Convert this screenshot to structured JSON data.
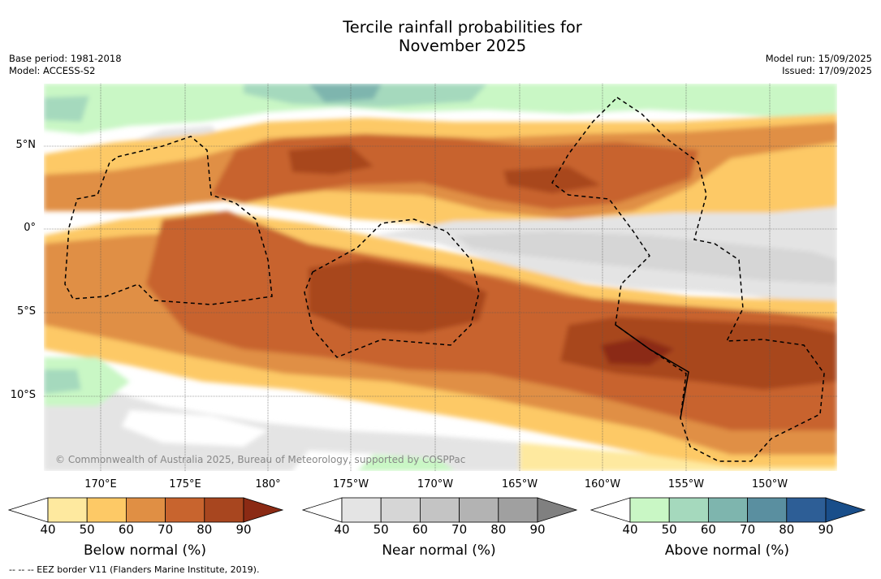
{
  "title_line1": "Tercile rainfall probabilities for",
  "title_line2": "November 2025",
  "base_period": "Base period: 1981-2018",
  "model": "Model: ACCESS-S2",
  "model_run": "Model run: 15/09/2025",
  "issued": "Issued: 17/09/2025",
  "copyright": "© Commonwealth of Australia 2025, Bureau of Meteorology, supported by COSPPac",
  "eez_note": "-- -- -- EEZ border V11 (Flanders Marine Institute, 2019).",
  "lat_labels": [
    "5°N",
    "0°",
    "5°S",
    "10°S"
  ],
  "lon_labels": [
    "170°E",
    "175°E",
    "180°",
    "175°W",
    "170°W",
    "165°W",
    "160°W",
    "155°W",
    "150°W"
  ],
  "colorbars": [
    {
      "title": "Below normal (%)",
      "ticks": [
        "40",
        "50",
        "60",
        "70",
        "80",
        "90"
      ],
      "colors": [
        "#ffffff",
        "#fee99f",
        "#fdc966",
        "#e08f44",
        "#c8642e",
        "#a8461f",
        "#8b2a14"
      ]
    },
    {
      "title": "Near normal (%)",
      "ticks": [
        "40",
        "50",
        "60",
        "70",
        "80",
        "90"
      ],
      "colors": [
        "#ffffff",
        "#e4e4e4",
        "#d6d6d6",
        "#c4c4c4",
        "#b3b3b3",
        "#a0a0a0",
        "#808080"
      ]
    },
    {
      "title": "Above normal (%)",
      "ticks": [
        "40",
        "50",
        "60",
        "70",
        "80",
        "90"
      ],
      "colors": [
        "#ffffff",
        "#c9f7c5",
        "#a5d9bd",
        "#7eb5ae",
        "#5a8fa0",
        "#2d5e96",
        "#194e8a"
      ]
    }
  ]
}
